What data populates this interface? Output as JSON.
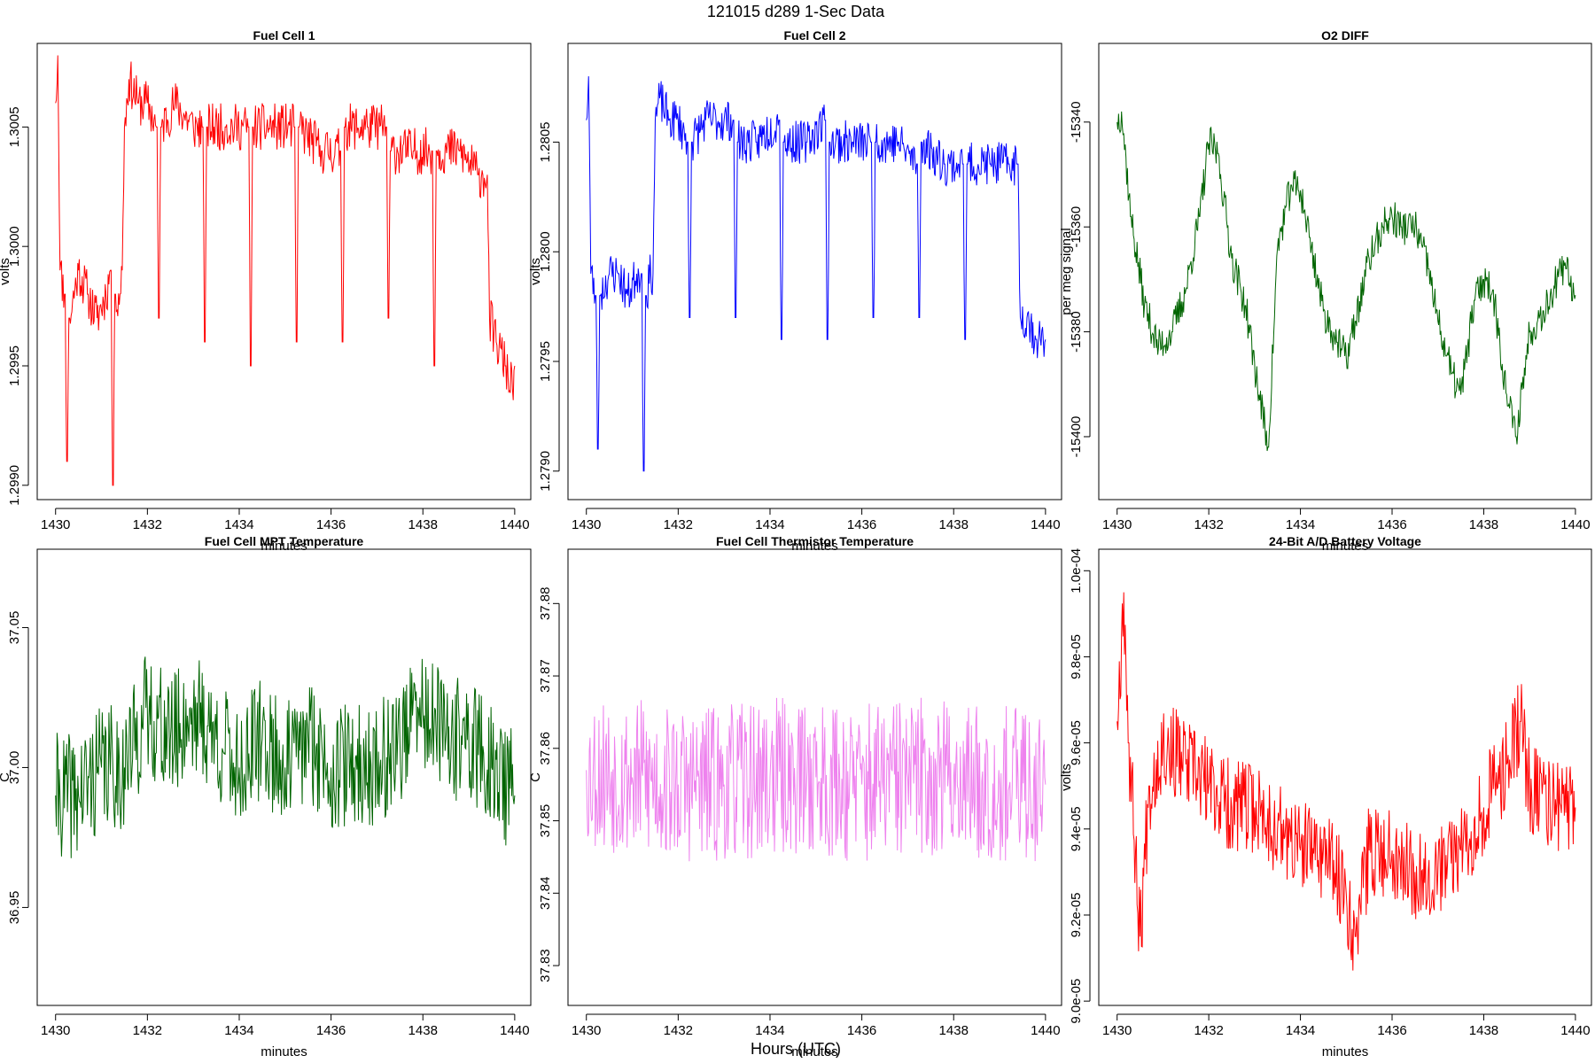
{
  "figure": {
    "title": "121015   d289   1-Sec Data",
    "xlabel": "Hours (UTC)"
  },
  "chart_data": [
    {
      "type": "line",
      "title": "Fuel Cell 1",
      "xlabel": "minutes",
      "ylabel": "volts",
      "color": "#ff0000",
      "xlim": [
        1429.6,
        1440.35
      ],
      "ylim": [
        1.29894,
        1.30085
      ],
      "xticks": [
        1430,
        1432,
        1434,
        1436,
        1438,
        1440
      ],
      "xtick_labels": [
        "1430",
        "1432",
        "1434",
        "1436",
        "1438",
        "1440"
      ],
      "yticks": [
        1.299,
        1.2995,
        1.3,
        1.3005
      ],
      "ytick_labels": [
        "1.2990",
        "1.2995",
        "1.3000",
        "1.3005"
      ],
      "x": [
        1430.0,
        1430.05,
        1430.1,
        1430.2,
        1430.25,
        1430.3,
        1430.5,
        1430.7,
        1430.9,
        1431.1,
        1431.2,
        1431.25,
        1431.3,
        1431.4,
        1431.45,
        1431.5,
        1431.6,
        1431.8,
        1432.0,
        1432.2,
        1432.25,
        1432.3,
        1432.6,
        1433.0,
        1433.2,
        1433.25,
        1433.3,
        1433.7,
        1434.2,
        1434.25,
        1434.3,
        1434.8,
        1435.2,
        1435.25,
        1435.3,
        1435.8,
        1436.2,
        1436.25,
        1436.3,
        1436.8,
        1437.2,
        1437.25,
        1437.3,
        1437.8,
        1438.2,
        1438.25,
        1438.3,
        1438.8,
        1439.2,
        1439.4,
        1439.45,
        1439.6,
        1439.8,
        1439.95,
        1440.0
      ],
      "y": [
        1.3006,
        1.3008,
        1.2999,
        1.2998,
        1.2991,
        1.2997,
        1.2999,
        1.2998,
        1.2997,
        1.2998,
        1.2999,
        1.299,
        1.2998,
        1.2998,
        1.2999,
        1.3005,
        1.3007,
        1.3006,
        1.3006,
        1.3005,
        1.2997,
        1.3005,
        1.3006,
        1.3005,
        1.3005,
        1.2996,
        1.3005,
        1.3005,
        1.3005,
        1.2995,
        1.3005,
        1.3005,
        1.3005,
        1.2996,
        1.3005,
        1.3004,
        1.3004,
        1.2996,
        1.3005,
        1.3005,
        1.3005,
        1.2997,
        1.3004,
        1.3004,
        1.3004,
        1.2995,
        1.3004,
        1.3004,
        1.3003,
        1.3003,
        1.2997,
        1.2996,
        1.2995,
        1.2994,
        1.2995
      ],
      "noise": 0.0002,
      "seed": 11
    },
    {
      "type": "line",
      "title": "Fuel Cell 2",
      "xlabel": "minutes",
      "ylabel": "volts",
      "color": "#0000ff",
      "xlim": [
        1429.6,
        1440.35
      ],
      "ylim": [
        1.27887,
        1.28095
      ],
      "xticks": [
        1430,
        1432,
        1434,
        1436,
        1438,
        1440
      ],
      "xtick_labels": [
        "1430",
        "1432",
        "1434",
        "1436",
        "1438",
        "1440"
      ],
      "yticks": [
        1.279,
        1.2795,
        1.28,
        1.2805
      ],
      "ytick_labels": [
        "1.2790",
        "1.2795",
        "1.2800",
        "1.2805"
      ],
      "x": [
        1430.0,
        1430.05,
        1430.1,
        1430.2,
        1430.25,
        1430.3,
        1430.5,
        1430.7,
        1430.9,
        1431.1,
        1431.2,
        1431.25,
        1431.3,
        1431.4,
        1431.45,
        1431.5,
        1431.6,
        1431.8,
        1432.0,
        1432.2,
        1432.25,
        1432.3,
        1432.6,
        1433.0,
        1433.2,
        1433.25,
        1433.3,
        1433.7,
        1434.2,
        1434.25,
        1434.3,
        1434.8,
        1435.2,
        1435.25,
        1435.3,
        1435.8,
        1436.2,
        1436.25,
        1436.3,
        1436.8,
        1437.2,
        1437.25,
        1437.3,
        1437.8,
        1438.2,
        1438.25,
        1438.3,
        1438.8,
        1439.2,
        1439.4,
        1439.45,
        1439.6,
        1439.8,
        1439.95,
        1440.0
      ],
      "y": [
        1.2806,
        1.2808,
        1.2799,
        1.2798,
        1.2791,
        1.2798,
        1.2799,
        1.2799,
        1.2798,
        1.2799,
        1.2799,
        1.279,
        1.2798,
        1.2799,
        1.2799,
        1.2806,
        1.2807,
        1.2806,
        1.2806,
        1.2805,
        1.2797,
        1.2805,
        1.2806,
        1.2806,
        1.2806,
        1.2797,
        1.2805,
        1.2805,
        1.2806,
        1.2796,
        1.2805,
        1.2805,
        1.2806,
        1.2796,
        1.2805,
        1.2805,
        1.2805,
        1.2797,
        1.2805,
        1.2805,
        1.2804,
        1.2797,
        1.2805,
        1.2804,
        1.2804,
        1.2796,
        1.2804,
        1.2804,
        1.2804,
        1.2804,
        1.2797,
        1.2797,
        1.2796,
        1.2796,
        1.2796
      ],
      "noise": 0.0002,
      "seed": 23
    },
    {
      "type": "line",
      "title": "O2 DIFF",
      "xlabel": "minutes",
      "ylabel": "per meg signal",
      "color": "#006400",
      "xlim": [
        1429.6,
        1440.35
      ],
      "ylim": [
        -15412,
        -15325
      ],
      "xticks": [
        1430,
        1432,
        1434,
        1436,
        1438,
        1440
      ],
      "xtick_labels": [
        "1430",
        "1432",
        "1434",
        "1436",
        "1438",
        "1440"
      ],
      "yticks": [
        -15400,
        -15380,
        -15360,
        -15340
      ],
      "ytick_labels": [
        "-15400",
        "-15380",
        "-15360",
        "-15340"
      ],
      "x": [
        1430.0,
        1430.1,
        1430.3,
        1430.6,
        1430.9,
        1431.2,
        1431.5,
        1431.8,
        1432.0,
        1432.2,
        1432.5,
        1432.8,
        1433.1,
        1433.3,
        1433.5,
        1433.8,
        1434.0,
        1434.2,
        1434.5,
        1434.8,
        1435.0,
        1435.2,
        1435.5,
        1435.8,
        1436.0,
        1436.2,
        1436.5,
        1436.8,
        1437.0,
        1437.3,
        1437.5,
        1437.8,
        1438.0,
        1438.2,
        1438.5,
        1438.7,
        1439.0,
        1439.3,
        1439.6,
        1439.8,
        1440.0
      ],
      "y": [
        -15340,
        -15338,
        -15358,
        -15375,
        -15383,
        -15380,
        -15372,
        -15358,
        -15344,
        -15346,
        -15366,
        -15375,
        -15392,
        -15402,
        -15364,
        -15352,
        -15353,
        -15362,
        -15376,
        -15382,
        -15385,
        -15378,
        -15366,
        -15360,
        -15358,
        -15360,
        -15360,
        -15368,
        -15378,
        -15388,
        -15392,
        -15374,
        -15370,
        -15372,
        -15392,
        -15400,
        -15380,
        -15376,
        -15370,
        -15368,
        -15373
      ],
      "noise": 7,
      "seed": 37
    },
    {
      "type": "line",
      "title": "Fuel Cell MPT Temperature",
      "xlabel": "minutes",
      "ylabel": "C",
      "color": "#006400",
      "xlim": [
        1429.6,
        1440.35
      ],
      "ylim": [
        36.915,
        37.078
      ],
      "xticks": [
        1430,
        1432,
        1434,
        1436,
        1438,
        1440
      ],
      "xtick_labels": [
        "1430",
        "1432",
        "1434",
        "1436",
        "1438",
        "1440"
      ],
      "yticks": [
        36.95,
        37.0,
        37.05
      ],
      "ytick_labels": [
        "36.95",
        "37.00",
        "37.05"
      ],
      "x": [
        1430.0,
        1430.1,
        1430.5,
        1431.0,
        1431.5,
        1432.0,
        1432.5,
        1433.0,
        1433.5,
        1434.0,
        1434.5,
        1435.0,
        1435.5,
        1436.0,
        1436.5,
        1437.0,
        1437.5,
        1438.0,
        1438.5,
        1439.0,
        1439.5,
        1440.0
      ],
      "y": [
        36.99,
        36.99,
        36.99,
        37.0,
        37.0,
        37.02,
        37.01,
        37.02,
        37.01,
        37.0,
        37.01,
        37.0,
        37.01,
        37.0,
        37.0,
        37.0,
        37.01,
        37.02,
        37.01,
        37.01,
        37.0,
        36.99
      ],
      "noise": 0.045,
      "seed": 41
    },
    {
      "type": "line",
      "title": "Fuel Cell Thermistor Temperature",
      "xlabel": "minutes",
      "ylabel": "C",
      "color": "#ee82ee",
      "xlim": [
        1429.6,
        1440.35
      ],
      "ylim": [
        37.8245,
        37.8875
      ],
      "xticks": [
        1430,
        1432,
        1434,
        1436,
        1438,
        1440
      ],
      "xtick_labels": [
        "1430",
        "1432",
        "1434",
        "1436",
        "1438",
        "1440"
      ],
      "yticks": [
        37.83,
        37.84,
        37.85,
        37.86,
        37.87,
        37.88
      ],
      "ytick_labels": [
        "37.83",
        "37.84",
        "37.85",
        "37.86",
        "37.87",
        "37.88"
      ],
      "x": [
        1430.0,
        1431.0,
        1432.0,
        1433.0,
        1434.0,
        1435.0,
        1436.0,
        1437.0,
        1438.0,
        1439.0,
        1440.0
      ],
      "y": [
        37.857,
        37.856,
        37.855,
        37.855,
        37.856,
        37.856,
        37.855,
        37.856,
        37.856,
        37.855,
        37.855
      ],
      "noise": 0.022,
      "seed": 53
    },
    {
      "type": "line",
      "title": "24-Bit A/D Battery Voltage",
      "xlabel": "minutes",
      "ylabel": "volts",
      "color": "#ff0000",
      "xlim": [
        1429.6,
        1440.35
      ],
      "ylim": [
        8.99e-05,
        0.0001005
      ],
      "xticks": [
        1430,
        1432,
        1434,
        1436,
        1438,
        1440
      ],
      "xtick_labels": [
        "1430",
        "1432",
        "1434",
        "1436",
        "1438",
        "1440"
      ],
      "yticks": [
        9e-05,
        9.2e-05,
        9.4e-05,
        9.6e-05,
        9.8e-05,
        0.0001
      ],
      "ytick_labels": [
        "9.0e-05",
        "9.2e-05",
        "9.4e-05",
        "9.6e-05",
        "9.8e-05",
        "1.0e-04"
      ],
      "x": [
        1430.0,
        1430.1,
        1430.15,
        1430.25,
        1430.4,
        1430.5,
        1430.7,
        1431.0,
        1431.5,
        1432.0,
        1432.5,
        1433.0,
        1433.5,
        1434.0,
        1434.5,
        1435.0,
        1435.2,
        1435.5,
        1436.0,
        1436.5,
        1437.0,
        1437.5,
        1438.0,
        1438.5,
        1438.8,
        1439.0,
        1439.5,
        1440.0
      ],
      "y": [
        9.65e-05,
        9.85e-05,
        9.95e-05,
        9.6e-05,
        9.35e-05,
        9.15e-05,
        9.5e-05,
        9.6e-05,
        9.55e-05,
        9.5e-05,
        9.45e-05,
        9.45e-05,
        9.4e-05,
        9.35e-05,
        9.35e-05,
        9.25e-05,
        9.15e-05,
        9.35e-05,
        9.35e-05,
        9.3e-05,
        9.3e-05,
        9.35e-05,
        9.45e-05,
        9.55e-05,
        9.65e-05,
        9.5e-05,
        9.45e-05,
        9.45e-05
      ],
      "noise": 2.2e-06,
      "seed": 67
    }
  ]
}
